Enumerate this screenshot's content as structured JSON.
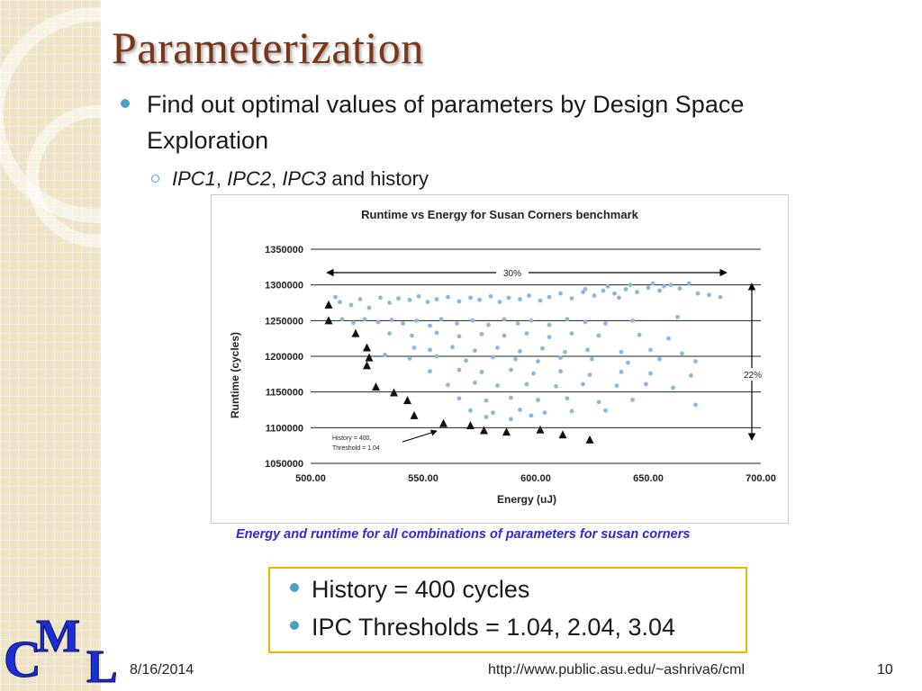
{
  "slide": {
    "title": "Parameterization",
    "bullet1": "Find out optimal values of parameters by Design Space Exploration",
    "bullet2": {
      "ipc1": "IPC1",
      "sep1": ", ",
      "ipc2": "IPC2",
      "sep2": ", ",
      "ipc3": "IPC3",
      "rest": " and history"
    },
    "caption": "Energy and runtime for all combinations of parameters for susan corners",
    "info": {
      "line1": "History = 400 cycles",
      "line2": "IPC Thresholds = 1.04, 2.04, 3.04"
    },
    "footer": {
      "date": "8/16/2014",
      "url": "http://www.public.asu.edu/~ashriva6/cml",
      "page": "10"
    },
    "logo": {
      "letters": [
        "C",
        "M",
        "L"
      ]
    }
  },
  "colors": {
    "title": "#7b3518",
    "accent": "#4aa3c7",
    "caption": "#2b2bd0",
    "box_border": "#f0b400",
    "logo": "#1a2fd6",
    "scatter": "#8ab8e6",
    "band": "#efe2c3"
  },
  "chart_data": {
    "type": "scatter",
    "title": "Runtime vs Energy for Susan Corners benchmark",
    "xlabel": "Energy (uJ)",
    "ylabel": "Runtime (cycles)",
    "xlim": [
      500,
      700
    ],
    "ylim": [
      1050000,
      1350000
    ],
    "xticks": [
      "500.00",
      "550.00",
      "600.00",
      "650.00",
      "700.00"
    ],
    "yticks": [
      "1050000",
      "1100000",
      "1150000",
      "1200000",
      "1250000",
      "1300000",
      "1350000"
    ],
    "grid": "horizontal",
    "annotations": {
      "width_label": "30%",
      "height_label": "22%",
      "callout_line1": "History = 400,",
      "callout_line2": "Threshold = 1.04"
    },
    "series": [
      {
        "marker": "triangle",
        "points": [
          [
            508,
            1272000
          ],
          [
            508,
            1250000
          ],
          [
            520,
            1232000
          ],
          [
            525,
            1212000
          ],
          [
            526,
            1198000
          ],
          [
            525,
            1187000
          ],
          [
            529,
            1157000
          ],
          [
            537,
            1149000
          ],
          [
            543,
            1138000
          ],
          [
            546,
            1117000
          ],
          [
            559,
            1106000
          ],
          [
            571,
            1103000
          ],
          [
            577,
            1096000
          ],
          [
            587,
            1094000
          ],
          [
            602,
            1097000
          ],
          [
            612,
            1090000
          ],
          [
            624,
            1083000
          ]
        ]
      },
      {
        "marker": "circle",
        "points": [
          [
            511,
            1283000
          ],
          [
            513,
            1276000
          ],
          [
            518,
            1272000
          ],
          [
            522,
            1280000
          ],
          [
            526,
            1268000
          ],
          [
            531,
            1282000
          ],
          [
            535,
            1275000
          ],
          [
            539,
            1281000
          ],
          [
            544,
            1279000
          ],
          [
            548,
            1284000
          ],
          [
            552,
            1276000
          ],
          [
            556,
            1280000
          ],
          [
            561,
            1283000
          ],
          [
            566,
            1277000
          ],
          [
            571,
            1282000
          ],
          [
            575,
            1279000
          ],
          [
            580,
            1284000
          ],
          [
            584,
            1276000
          ],
          [
            588,
            1282000
          ],
          [
            593,
            1280000
          ],
          [
            597,
            1285000
          ],
          [
            602,
            1278000
          ],
          [
            606,
            1283000
          ],
          [
            611,
            1288000
          ],
          [
            616,
            1281000
          ],
          [
            621,
            1290000
          ],
          [
            626,
            1285000
          ],
          [
            630,
            1292000
          ],
          [
            635,
            1288000
          ],
          [
            640,
            1294000
          ],
          [
            645,
            1290000
          ],
          [
            650,
            1296000
          ],
          [
            655,
            1292000
          ],
          [
            660,
            1300000
          ],
          [
            664,
            1295000
          ],
          [
            668,
            1302000
          ],
          [
            672,
            1288000
          ],
          [
            677,
            1286000
          ],
          [
            682,
            1283000
          ],
          [
            622,
            1294000
          ],
          [
            632,
            1298000
          ],
          [
            642,
            1300000
          ],
          [
            652,
            1302000
          ],
          [
            657,
            1298000
          ],
          [
            637,
            1282000
          ],
          [
            514,
            1252000
          ],
          [
            519,
            1247000
          ],
          [
            524,
            1252000
          ],
          [
            530,
            1248000
          ],
          [
            536,
            1251000
          ],
          [
            541,
            1246000
          ],
          [
            547,
            1250000
          ],
          [
            553,
            1243000
          ],
          [
            558,
            1252000
          ],
          [
            565,
            1246000
          ],
          [
            572,
            1250000
          ],
          [
            579,
            1244000
          ],
          [
            586,
            1252000
          ],
          [
            592,
            1246000
          ],
          [
            598,
            1250000
          ],
          [
            606,
            1244000
          ],
          [
            614,
            1252000
          ],
          [
            622,
            1248000
          ],
          [
            631,
            1246000
          ],
          [
            643,
            1250000
          ],
          [
            663,
            1255000
          ],
          [
            535,
            1232000
          ],
          [
            545,
            1229000
          ],
          [
            556,
            1233000
          ],
          [
            566,
            1228000
          ],
          [
            576,
            1231000
          ],
          [
            586,
            1229000
          ],
          [
            596,
            1232000
          ],
          [
            606,
            1227000
          ],
          [
            616,
            1232000
          ],
          [
            628,
            1229000
          ],
          [
            646,
            1230000
          ],
          [
            659,
            1225000
          ],
          [
            546,
            1212000
          ],
          [
            553,
            1209000
          ],
          [
            563,
            1213000
          ],
          [
            573,
            1208000
          ],
          [
            583,
            1212000
          ],
          [
            593,
            1207000
          ],
          [
            603,
            1211000
          ],
          [
            613,
            1206000
          ],
          [
            623,
            1209000
          ],
          [
            638,
            1206000
          ],
          [
            651,
            1209000
          ],
          [
            665,
            1204000
          ],
          [
            533,
            1202000
          ],
          [
            544,
            1197000
          ],
          [
            556,
            1200000
          ],
          [
            569,
            1194000
          ],
          [
            581,
            1199000
          ],
          [
            591,
            1196000
          ],
          [
            601,
            1193000
          ],
          [
            611,
            1198000
          ],
          [
            625,
            1196000
          ],
          [
            641,
            1191000
          ],
          [
            655,
            1196000
          ],
          [
            671,
            1193000
          ],
          [
            553,
            1179000
          ],
          [
            566,
            1181000
          ],
          [
            576,
            1178000
          ],
          [
            589,
            1181000
          ],
          [
            599,
            1176000
          ],
          [
            611,
            1179000
          ],
          [
            624,
            1174000
          ],
          [
            638,
            1178000
          ],
          [
            651,
            1176000
          ],
          [
            669,
            1173000
          ],
          [
            561,
            1160000
          ],
          [
            573,
            1163000
          ],
          [
            583,
            1159000
          ],
          [
            596,
            1161000
          ],
          [
            609,
            1158000
          ],
          [
            621,
            1161000
          ],
          [
            636,
            1159000
          ],
          [
            649,
            1161000
          ],
          [
            661,
            1156000
          ],
          [
            566,
            1141000
          ],
          [
            578,
            1138000
          ],
          [
            589,
            1142000
          ],
          [
            601,
            1139000
          ],
          [
            614,
            1141000
          ],
          [
            628,
            1136000
          ],
          [
            643,
            1139000
          ],
          [
            671,
            1132000
          ],
          [
            571,
            1124000
          ],
          [
            581,
            1121000
          ],
          [
            593,
            1125000
          ],
          [
            604,
            1121000
          ],
          [
            616,
            1123000
          ],
          [
            631,
            1124000
          ],
          [
            578,
            1115000
          ],
          [
            589,
            1112000
          ],
          [
            598,
            1117000
          ]
        ]
      }
    ]
  }
}
